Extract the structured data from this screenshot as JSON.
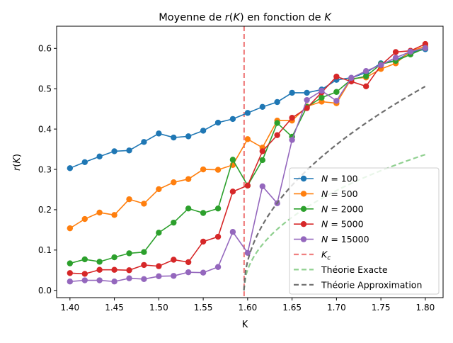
{
  "chart_data": {
    "type": "line",
    "title": "Moyenne de r(K) en fonction de K",
    "xlabel": "K",
    "ylabel": "r(K)",
    "xlim": [
      1.385,
      1.82
    ],
    "ylim": [
      -0.018,
      0.655
    ],
    "xticks": [
      1.4,
      1.45,
      1.5,
      1.55,
      1.6,
      1.65,
      1.7,
      1.75,
      1.8
    ],
    "xtick_labels": [
      "1.40",
      "1.45",
      "1.50",
      "1.55",
      "1.60",
      "1.65",
      "1.70",
      "1.75",
      "1.80"
    ],
    "yticks": [
      0.0,
      0.1,
      0.2,
      0.3,
      0.4,
      0.5,
      0.6
    ],
    "ytick_labels": [
      "0.0",
      "0.1",
      "0.2",
      "0.3",
      "0.4",
      "0.5",
      "0.6"
    ],
    "grid": false,
    "legend_position": "lower-right",
    "x": [
      1.4,
      1.4167,
      1.4333,
      1.45,
      1.4667,
      1.4833,
      1.5,
      1.5167,
      1.5333,
      1.55,
      1.5667,
      1.5833,
      1.6,
      1.6167,
      1.6333,
      1.65,
      1.6667,
      1.6833,
      1.7,
      1.7167,
      1.7333,
      1.75,
      1.7667,
      1.7833,
      1.8
    ],
    "series": [
      {
        "name": "N = 100",
        "color": "#1f77b4",
        "values": [
          0.303,
          0.318,
          0.332,
          0.345,
          0.347,
          0.368,
          0.389,
          0.379,
          0.382,
          0.396,
          0.416,
          0.425,
          0.44,
          0.455,
          0.467,
          0.49,
          0.49,
          0.498,
          0.522,
          0.527,
          0.54,
          0.563,
          0.57,
          0.59,
          0.598
        ]
      },
      {
        "name": "N = 500",
        "color": "#ff7f0e",
        "values": [
          0.154,
          0.177,
          0.193,
          0.187,
          0.226,
          0.215,
          0.251,
          0.268,
          0.276,
          0.3,
          0.299,
          0.311,
          0.375,
          0.354,
          0.421,
          0.421,
          0.456,
          0.468,
          0.464,
          0.525,
          0.528,
          0.549,
          0.563,
          0.593,
          0.605
        ]
      },
      {
        "name": "N = 2000",
        "color": "#2ca02c",
        "values": [
          0.067,
          0.077,
          0.071,
          0.082,
          0.092,
          0.095,
          0.143,
          0.168,
          0.203,
          0.192,
          0.203,
          0.324,
          0.26,
          0.323,
          0.415,
          0.381,
          0.455,
          0.478,
          0.492,
          0.523,
          0.531,
          0.561,
          0.569,
          0.585,
          0.601
        ]
      },
      {
        "name": "N = 5000",
        "color": "#d62728",
        "values": [
          0.043,
          0.041,
          0.051,
          0.051,
          0.05,
          0.063,
          0.06,
          0.076,
          0.07,
          0.121,
          0.133,
          0.245,
          0.26,
          0.345,
          0.385,
          0.428,
          0.452,
          0.491,
          0.53,
          0.518,
          0.506,
          0.558,
          0.591,
          0.594,
          0.611
        ]
      },
      {
        "name": "N = 15000",
        "color": "#9467bd",
        "values": [
          0.022,
          0.025,
          0.025,
          0.022,
          0.03,
          0.028,
          0.035,
          0.036,
          0.045,
          0.044,
          0.058,
          0.145,
          0.093,
          0.258,
          0.216,
          0.373,
          0.472,
          0.495,
          0.47,
          0.527,
          0.544,
          0.559,
          0.577,
          0.592,
          0.601
        ]
      }
    ],
    "reference_lines": [
      {
        "name": "K_c",
        "label_main": "K",
        "label_sub": "c",
        "color": "#f08080",
        "style": "dashed",
        "x": 1.596
      }
    ],
    "theory_curves": [
      {
        "name": "Théorie Exacte",
        "color": "#90d090",
        "style": "dashed",
        "description": "r = sqrt(1 - Kc/K)"
      },
      {
        "name": "Théorie Approximation",
        "color": "#6e6e6e",
        "style": "dashed",
        "description": "r = sqrt(16/(pi Kc^3)) * sqrt(K - Kc)"
      }
    ],
    "K_c": 1.5958
  }
}
